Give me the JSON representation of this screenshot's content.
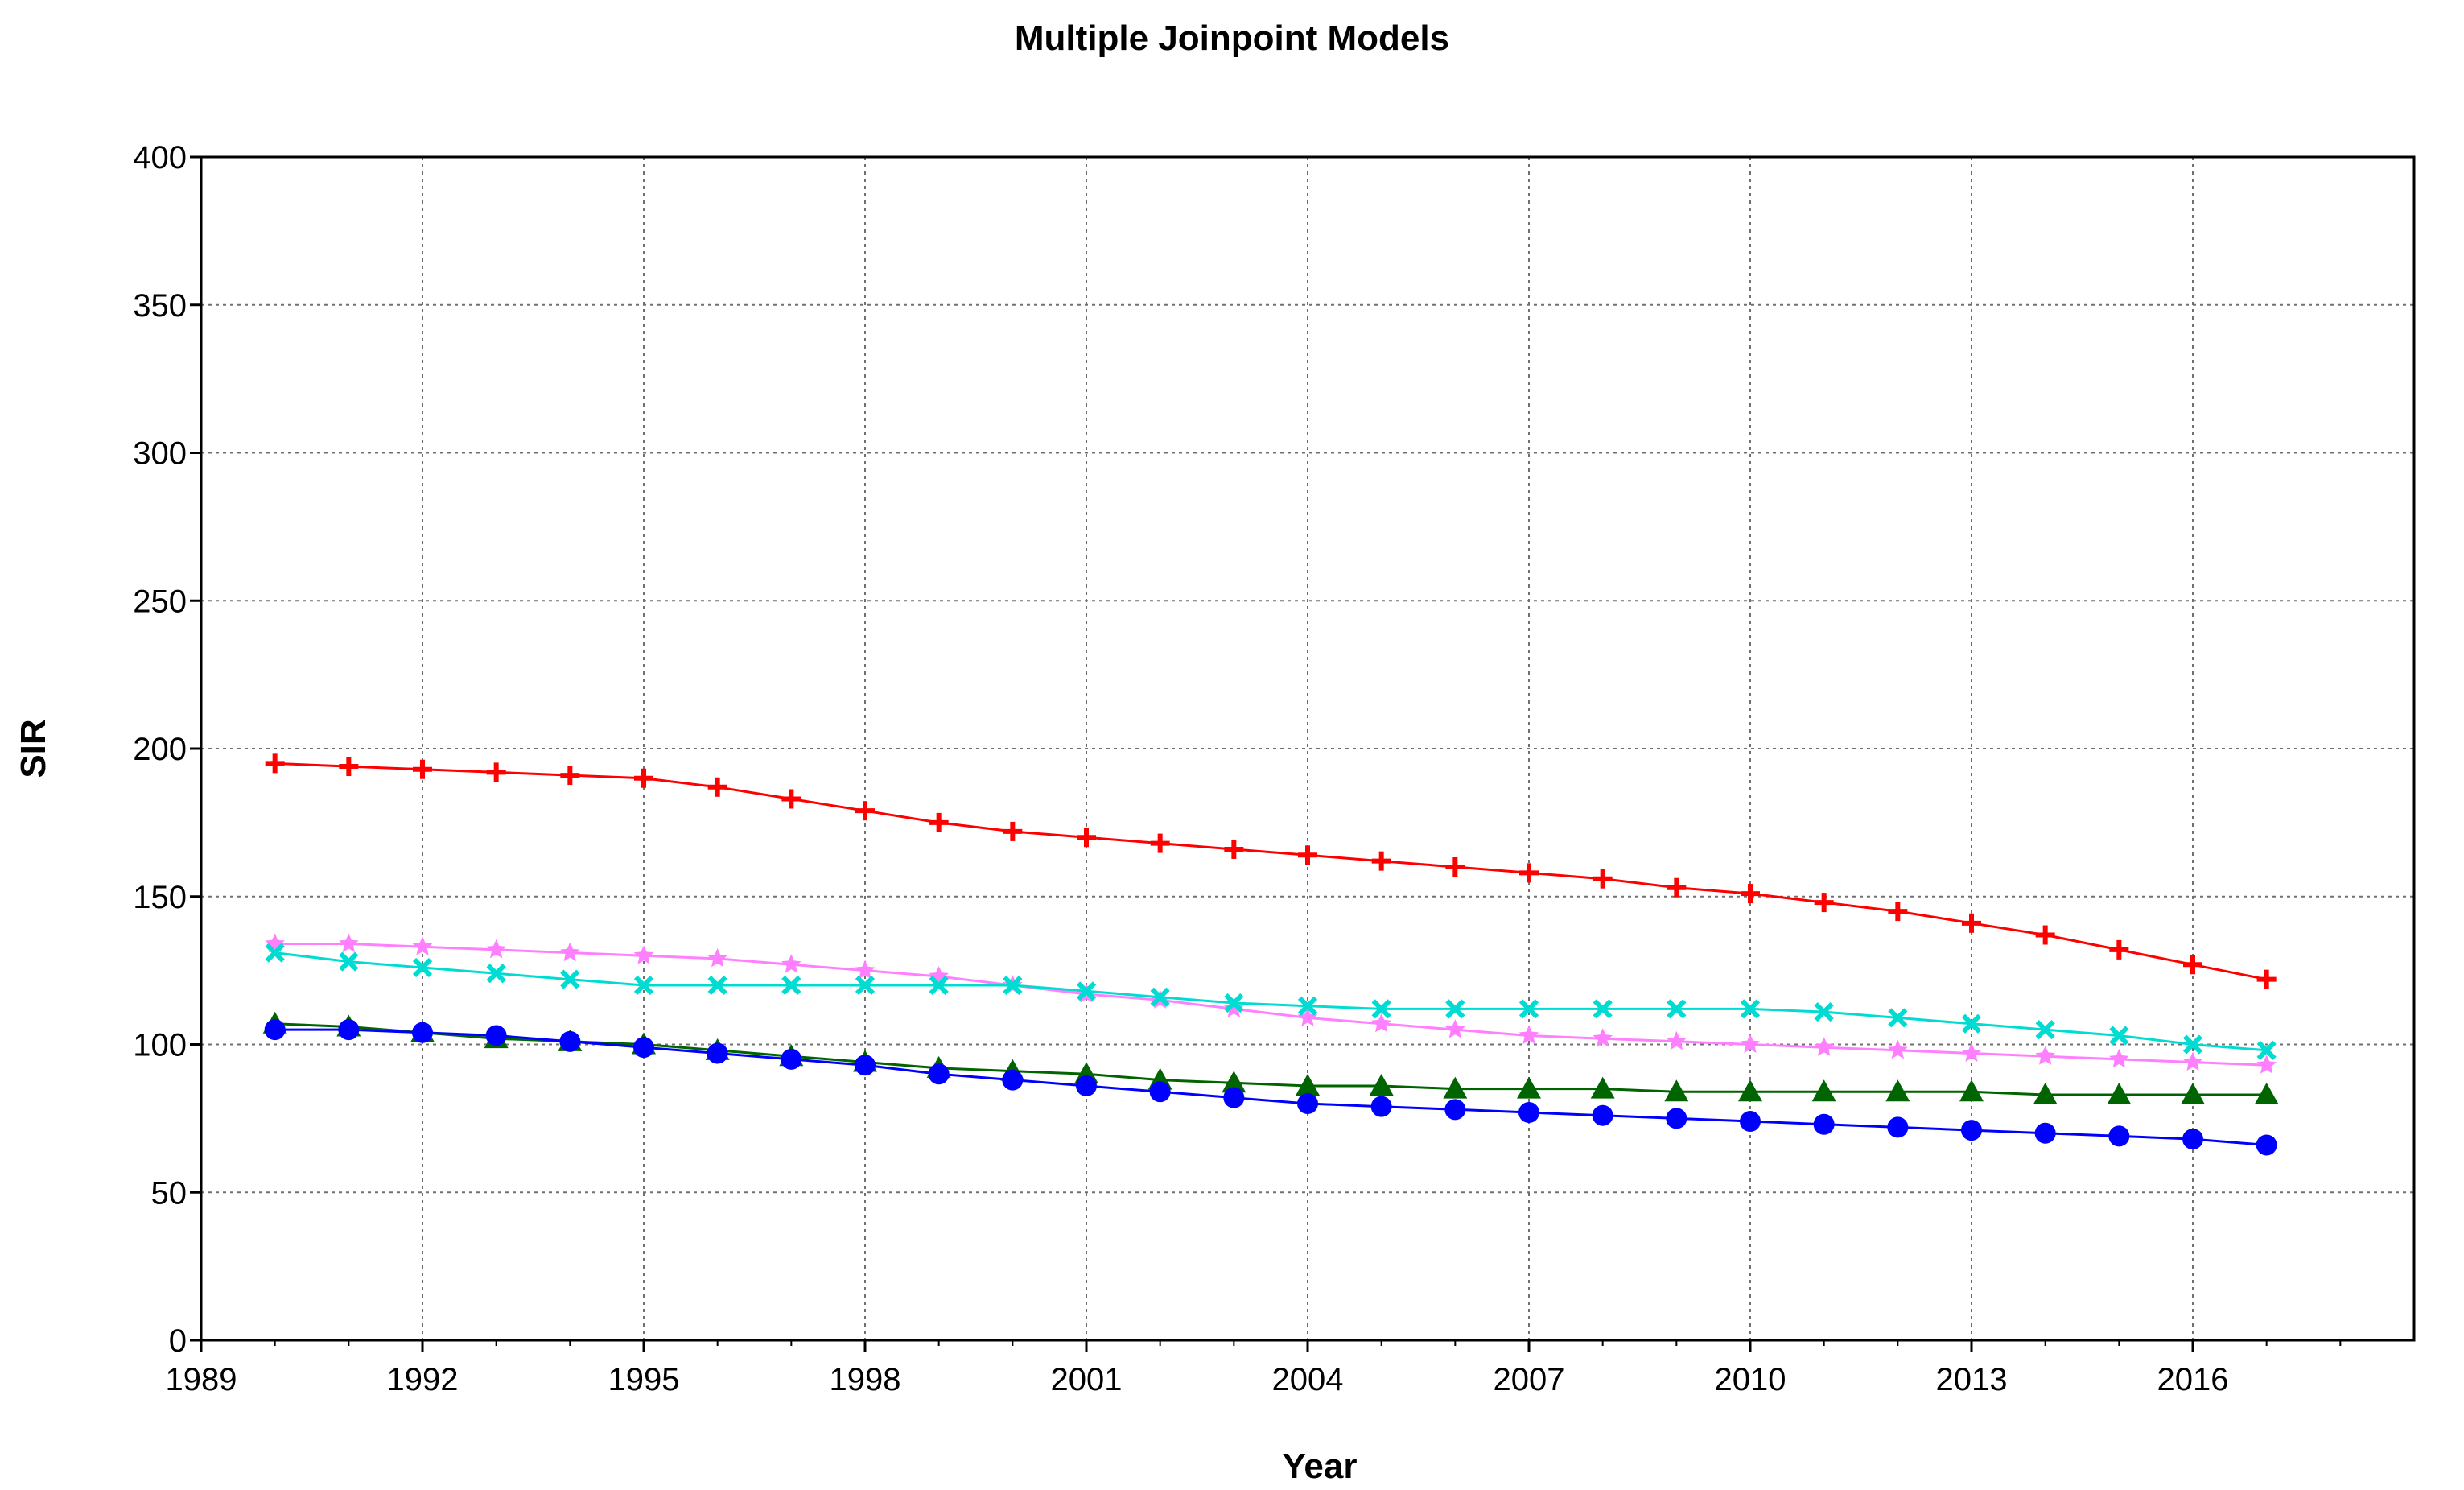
{
  "chart_data": {
    "type": "line",
    "title": "Multiple Joinpoint Models",
    "xlabel": "Year",
    "ylabel": "SIR",
    "xlim": [
      1989,
      2019
    ],
    "ylim": [
      0,
      400
    ],
    "x_ticks": [
      1989,
      1992,
      1995,
      1998,
      2001,
      2004,
      2007,
      2010,
      2013,
      2016
    ],
    "y_ticks": [
      0,
      50,
      100,
      150,
      200,
      250,
      300,
      350,
      400
    ],
    "grid": true,
    "x": [
      1990,
      1991,
      1992,
      1993,
      1994,
      1995,
      1996,
      1997,
      1998,
      1999,
      2000,
      2001,
      2002,
      2003,
      2004,
      2005,
      2006,
      2007,
      2008,
      2009,
      2010,
      2011,
      2012,
      2013,
      2014,
      2015,
      2016,
      2017
    ],
    "series": [
      {
        "name": "red",
        "color": "#ff0000",
        "marker": "plus",
        "values": [
          195,
          194,
          193,
          192,
          191,
          190,
          187,
          183,
          179,
          175,
          172,
          170,
          168,
          166,
          164,
          162,
          160,
          158,
          156,
          153,
          151,
          148,
          145,
          141,
          137,
          132,
          127,
          122
        ]
      },
      {
        "name": "pink",
        "color": "#ff80ff",
        "marker": "star",
        "values": [
          134,
          134,
          133,
          132,
          131,
          130,
          129,
          127,
          125,
          123,
          120,
          117,
          115,
          112,
          109,
          107,
          105,
          103,
          102,
          101,
          100,
          99,
          98,
          97,
          96,
          95,
          94,
          93
        ]
      },
      {
        "name": "cyan",
        "color": "#00dcd2",
        "marker": "cross",
        "values": [
          131,
          128,
          126,
          124,
          122,
          120,
          120,
          120,
          120,
          120,
          120,
          118,
          116,
          114,
          113,
          112,
          112,
          112,
          112,
          112,
          112,
          111,
          109,
          107,
          105,
          103,
          100,
          98
        ]
      },
      {
        "name": "green",
        "color": "#006400",
        "marker": "triangle",
        "values": [
          107,
          106,
          104,
          102,
          101,
          100,
          98,
          96,
          94,
          92,
          91,
          90,
          88,
          87,
          86,
          86,
          85,
          85,
          85,
          84,
          84,
          84,
          84,
          84,
          83,
          83,
          83,
          83
        ]
      },
      {
        "name": "blue",
        "color": "#0000ff",
        "marker": "circle",
        "values": [
          105,
          105,
          104,
          103,
          101,
          99,
          97,
          95,
          93,
          90,
          88,
          86,
          84,
          82,
          80,
          79,
          78,
          77,
          76,
          75,
          74,
          73,
          72,
          71,
          70,
          69,
          68,
          66
        ]
      }
    ]
  }
}
